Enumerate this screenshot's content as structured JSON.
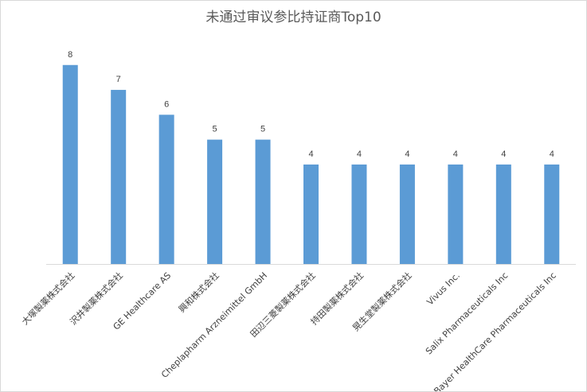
{
  "chart_data": {
    "type": "bar",
    "title": "未通过审议参比持证商Top10",
    "xlabel": "",
    "ylabel": "",
    "categories": [
      "大塚製薬株式会社",
      "沢井製薬株式会社",
      "GE Healthcare AS",
      "興和株式会社",
      "Cheplapharm Arzneimittel GmbH",
      "田辺三菱製薬株式会社",
      "持田製薬株式会社",
      "晃生堂製薬株式会社",
      "Vivus Inc.",
      "Salix Pharmaceuticals Inc",
      "Bayer HealthCare Pharmaceuticals Inc"
    ],
    "values": [
      8,
      7,
      6,
      5,
      5,
      4,
      4,
      4,
      4,
      4,
      4
    ],
    "ylim": [
      0,
      8.6
    ],
    "grid": false,
    "legend": "none",
    "bar_color": "#5b9bd5",
    "data_labels": true
  }
}
